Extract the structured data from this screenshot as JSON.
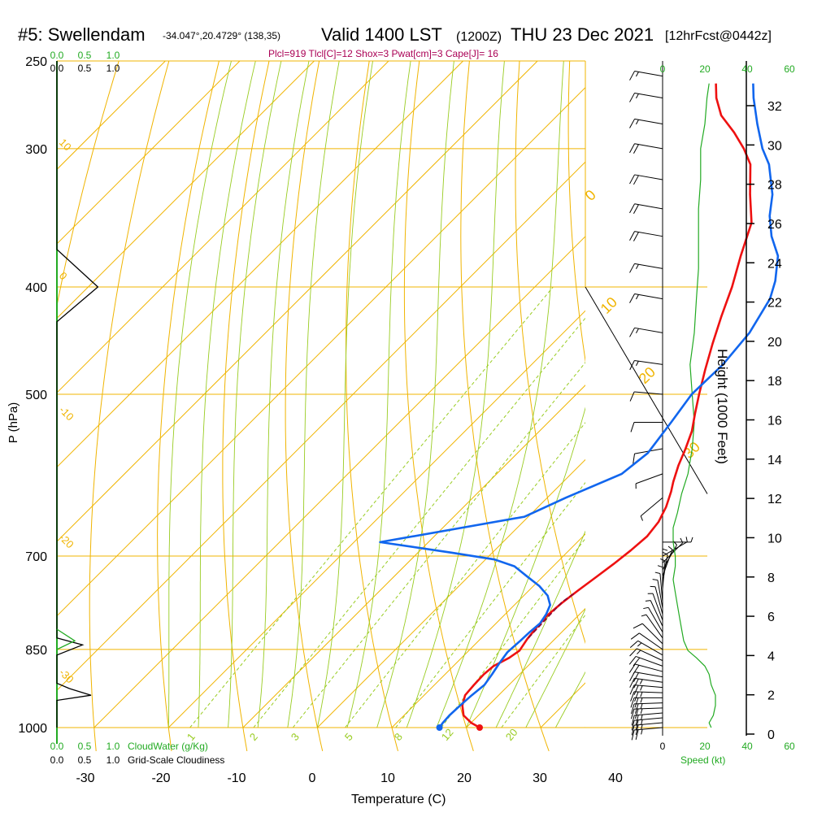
{
  "header": {
    "station": "#5: Swellendam",
    "coords": "-34.047°,20.4729° (138,35)",
    "valid": "Valid 1400 LST",
    "zulu": "(1200Z)",
    "date": "THU 23 Dec 2021",
    "forecast": "[12hrFcst@0442z]",
    "indices": "Plcl=919 Tlcl[C]=12 Shox=3 Pwat[cm]=3 Cape[J]= 16"
  },
  "colors": {
    "temperature": "#ee1111",
    "dewpoint": "#1166ee",
    "parcel": "#880033",
    "isobar": "#f0b400",
    "isotherm": "#f0b400",
    "dry_adiabat": "#f0b400",
    "moist_adiabat": "#99cc22",
    "mixing_ratio": "#99cc22",
    "cloud": "#22aa22",
    "wind_speed": "#22aa22",
    "indices_text": "#aa0055"
  },
  "chart_data": {
    "type": "line",
    "subtype": "skew-t log-p sounding",
    "xlabel": "Temperature (C)",
    "ylabel": "P (hPa)",
    "right_axis_label": "Height (1000 Feet)",
    "x_ticks": [
      "-30",
      "-20",
      "-10",
      "0",
      "10",
      "20",
      "30",
      "40"
    ],
    "pressure_ticks": [
      "250",
      "300",
      "400",
      "500",
      "700",
      "850",
      "1000"
    ],
    "height_ticks": [
      "0",
      "2",
      "4",
      "6",
      "8",
      "10",
      "12",
      "14",
      "16",
      "18",
      "20",
      "22",
      "24",
      "26",
      "28",
      "30",
      "32"
    ],
    "xlim": [
      -35,
      36
    ],
    "ylim_hpa": [
      1000,
      250
    ],
    "isotherm_labels": [
      "10",
      "0",
      "-10",
      "-20",
      "-30"
    ],
    "dry_adiabat_labels": [
      "0",
      "10",
      "20",
      "30"
    ],
    "mixing_ratio_labels": [
      "1",
      "2",
      "3",
      "5",
      "8",
      "12",
      "20"
    ],
    "cloud_scale_top": [
      "0.0",
      "0.5",
      "1.0"
    ],
    "cloud_scale_bottom": [
      "0.0",
      "0.5",
      "1.0"
    ],
    "cloudwater_label": "CloudWater (g/Kg)",
    "cloudiness_label": "Grid-Scale Cloudiness",
    "speed_ticks": [
      "0",
      "20",
      "40",
      "60"
    ],
    "speed_label": "Speed (kt)",
    "series": [
      {
        "name": "Temperature",
        "points": [
          [
            21.8,
            1000
          ],
          [
            20,
            990
          ],
          [
            18,
            975
          ],
          [
            16.5,
            955
          ],
          [
            15.5,
            935
          ],
          [
            15.3,
            915
          ],
          [
            15.2,
            895
          ],
          [
            15.4,
            880
          ],
          [
            16.4,
            865
          ],
          [
            16.8,
            852
          ],
          [
            16.3,
            832
          ],
          [
            16,
            812
          ],
          [
            15.8,
            792
          ],
          [
            16.1,
            772
          ],
          [
            16.6,
            752
          ],
          [
            17.2,
            732
          ],
          [
            17.8,
            712
          ],
          [
            18.3,
            692
          ],
          [
            18.6,
            672
          ],
          [
            18.2,
            652
          ],
          [
            17.2,
            632
          ],
          [
            15.8,
            612
          ],
          [
            14.8,
            600
          ],
          [
            13.3,
            580
          ],
          [
            12,
            560
          ],
          [
            10.5,
            540
          ],
          [
            8.5,
            520
          ],
          [
            6.5,
            500
          ],
          [
            4,
            475
          ],
          [
            1.5,
            450
          ],
          [
            -1,
            425
          ],
          [
            -3.5,
            400
          ],
          [
            -6.5,
            375
          ],
          [
            -9.5,
            350
          ],
          [
            -13.5,
            330
          ],
          [
            -17.5,
            310
          ],
          [
            -20.5,
            300
          ],
          [
            -24,
            290
          ],
          [
            -28,
            280
          ],
          [
            -31,
            270
          ],
          [
            -33,
            262
          ]
        ]
      },
      {
        "name": "Dewpoint",
        "points": [
          [
            16.4,
            1000
          ],
          [
            16.2,
            990
          ],
          [
            16.1,
            975
          ],
          [
            16.2,
            955
          ],
          [
            16.4,
            935
          ],
          [
            16.7,
            915
          ],
          [
            16.3,
            895
          ],
          [
            15.8,
            875
          ],
          [
            15.4,
            855
          ],
          [
            15.6,
            835
          ],
          [
            15.7,
            820
          ],
          [
            15.9,
            805
          ],
          [
            15.5,
            790
          ],
          [
            14.8,
            775
          ],
          [
            13.2,
            760
          ],
          [
            10.8,
            745
          ],
          [
            7.8,
            730
          ],
          [
            4.8,
            715
          ],
          [
            1.2,
            705
          ],
          [
            -5.5,
            695
          ],
          [
            -16.5,
            680
          ],
          [
            -0.5,
            645
          ],
          [
            2.5,
            620
          ],
          [
            6.8,
            590
          ],
          [
            7.5,
            565
          ],
          [
            6.5,
            530
          ],
          [
            5.5,
            500
          ],
          [
            5.7,
            470
          ],
          [
            5,
            440
          ],
          [
            3.2,
            410
          ],
          [
            1.5,
            395
          ],
          [
            -1.5,
            375
          ],
          [
            -5,
            360
          ],
          [
            -8,
            345
          ],
          [
            -10.5,
            330
          ],
          [
            -15,
            310
          ],
          [
            -18,
            300
          ],
          [
            -22,
            285
          ],
          [
            -26,
            270
          ],
          [
            -28,
            262
          ]
        ]
      },
      {
        "name": "Parcel",
        "points": [
          [
            16.3,
            830
          ],
          [
            16.2,
            810
          ],
          [
            16.1,
            790
          ],
          [
            16.0,
            770
          ],
          [
            16.5,
            755
          ]
        ]
      }
    ],
    "winds": [
      {
        "p": 1000,
        "dir": 265,
        "kt": 25
      },
      {
        "p": 990,
        "dir": 265,
        "kt": 26
      },
      {
        "p": 980,
        "dir": 265,
        "kt": 27
      },
      {
        "p": 970,
        "dir": 265,
        "kt": 27
      },
      {
        "p": 960,
        "dir": 268,
        "kt": 28
      },
      {
        "p": 950,
        "dir": 268,
        "kt": 28
      },
      {
        "p": 940,
        "dir": 270,
        "kt": 28
      },
      {
        "p": 930,
        "dir": 272,
        "kt": 27
      },
      {
        "p": 920,
        "dir": 275,
        "kt": 26
      },
      {
        "p": 910,
        "dir": 278,
        "kt": 25
      },
      {
        "p": 900,
        "dir": 280,
        "kt": 24
      },
      {
        "p": 890,
        "dir": 285,
        "kt": 22
      },
      {
        "p": 880,
        "dir": 290,
        "kt": 20
      },
      {
        "p": 870,
        "dir": 295,
        "kt": 18
      },
      {
        "p": 860,
        "dir": 300,
        "kt": 15
      },
      {
        "p": 850,
        "dir": 305,
        "kt": 12
      },
      {
        "p": 840,
        "dir": 315,
        "kt": 10
      },
      {
        "p": 830,
        "dir": 325,
        "kt": 9
      },
      {
        "p": 820,
        "dir": 330,
        "kt": 8
      },
      {
        "p": 810,
        "dir": 335,
        "kt": 7
      },
      {
        "p": 800,
        "dir": 340,
        "kt": 6
      },
      {
        "p": 790,
        "dir": 345,
        "kt": 5
      },
      {
        "p": 780,
        "dir": 350,
        "kt": 6
      },
      {
        "p": 770,
        "dir": 355,
        "kt": 7
      },
      {
        "p": 760,
        "dir": 0,
        "kt": 7
      },
      {
        "p": 750,
        "dir": 5,
        "kt": 8
      },
      {
        "p": 740,
        "dir": 10,
        "kt": 8
      },
      {
        "p": 730,
        "dir": 20,
        "kt": 8
      },
      {
        "p": 720,
        "dir": 30,
        "kt": 7
      },
      {
        "p": 710,
        "dir": 45,
        "kt": 6
      },
      {
        "p": 700,
        "dir": 60,
        "kt": 6
      },
      {
        "p": 680,
        "dir": 90,
        "kt": 5
      },
      {
        "p": 650,
        "dir": 180,
        "kt": 5
      },
      {
        "p": 620,
        "dir": 230,
        "kt": 7
      },
      {
        "p": 590,
        "dir": 250,
        "kt": 8
      },
      {
        "p": 560,
        "dir": 260,
        "kt": 10
      },
      {
        "p": 530,
        "dir": 270,
        "kt": 12
      },
      {
        "p": 500,
        "dir": 275,
        "kt": 14
      },
      {
        "p": 470,
        "dir": 278,
        "kt": 15
      },
      {
        "p": 440,
        "dir": 280,
        "kt": 16
      },
      {
        "p": 410,
        "dir": 280,
        "kt": 18
      },
      {
        "p": 385,
        "dir": 280,
        "kt": 18
      },
      {
        "p": 360,
        "dir": 280,
        "kt": 20
      },
      {
        "p": 340,
        "dir": 280,
        "kt": 20
      },
      {
        "p": 320,
        "dir": 280,
        "kt": 20
      },
      {
        "p": 300,
        "dir": 280,
        "kt": 20
      },
      {
        "p": 285,
        "dir": 280,
        "kt": 18
      },
      {
        "p": 270,
        "dir": 280,
        "kt": 17
      },
      {
        "p": 258,
        "dir": 280,
        "kt": 17
      }
    ],
    "wind_speed_profile": [
      [
        23,
        1000
      ],
      [
        22,
        990
      ],
      [
        24,
        975
      ],
      [
        25,
        955
      ],
      [
        25,
        935
      ],
      [
        23,
        915
      ],
      [
        22,
        895
      ],
      [
        20,
        880
      ],
      [
        16,
        865
      ],
      [
        12,
        852
      ],
      [
        10,
        835
      ],
      [
        9,
        815
      ],
      [
        8,
        795
      ],
      [
        7,
        775
      ],
      [
        6,
        755
      ],
      [
        5,
        735
      ],
      [
        6,
        715
      ],
      [
        6,
        700
      ],
      [
        5,
        680
      ],
      [
        5,
        660
      ],
      [
        7,
        640
      ],
      [
        9,
        615
      ],
      [
        12,
        590
      ],
      [
        14,
        560
      ],
      [
        15,
        530
      ],
      [
        14,
        500
      ],
      [
        13,
        470
      ],
      [
        15,
        440
      ],
      [
        16,
        410
      ],
      [
        17,
        385
      ],
      [
        17,
        360
      ],
      [
        17,
        340
      ],
      [
        18,
        320
      ],
      [
        18,
        300
      ],
      [
        20,
        285
      ],
      [
        21,
        270
      ],
      [
        22,
        262
      ]
    ],
    "cloudiness_profile": [
      [
        0,
        1000
      ],
      [
        0,
        945
      ],
      [
        0.6,
        935
      ],
      [
        0.22,
        922
      ],
      [
        0,
        912
      ],
      [
        0,
        860
      ],
      [
        0.45,
        842
      ],
      [
        0,
        830
      ],
      [
        0,
        735
      ],
      [
        0,
        700
      ],
      [
        0,
        560
      ],
      [
        0,
        520
      ],
      [
        0,
        430
      ],
      [
        0.72,
        400
      ],
      [
        0,
        370
      ],
      [
        0,
        250
      ]
    ]
  }
}
